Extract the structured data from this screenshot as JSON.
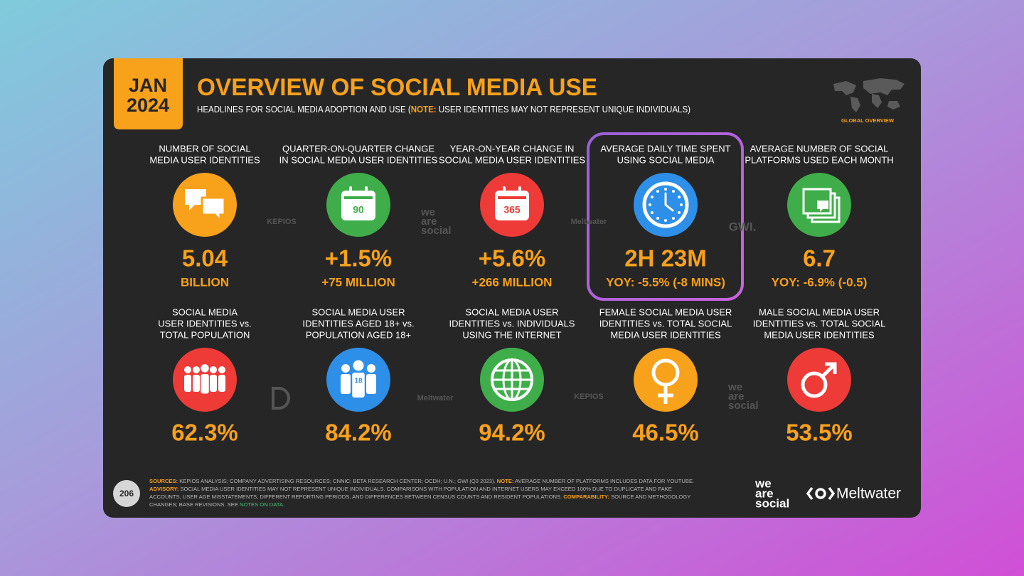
{
  "badge": {
    "month": "JAN",
    "year": "2024"
  },
  "header": {
    "title": "OVERVIEW OF SOCIAL MEDIA USE",
    "subtitle": [
      "HEADLINES FOR SOCIAL MEDIA ADOPTION AND USE (",
      "NOTE:",
      " USER IDENTITIES MAY NOT REPRESENT UNIQUE INDIVIDUALS)"
    ],
    "region": "GLOBAL OVERVIEW"
  },
  "tiles": [
    {
      "label": [
        "NUMBER OF SOCIAL",
        "MEDIA USER IDENTITIES"
      ],
      "value": "5.04",
      "sub": "BILLION"
    },
    {
      "label": [
        "QUARTER-ON-QUARTER CHANGE",
        "IN SOCIAL MEDIA USER IDENTITIES"
      ],
      "icon_text": "90",
      "value": "+1.5%",
      "sub": "+75 MILLION"
    },
    {
      "label": [
        "YEAR-ON-YEAR CHANGE IN",
        "SOCIAL MEDIA USER IDENTITIES"
      ],
      "icon_text": "365",
      "value": "+5.6%",
      "sub": "+266 MILLION"
    },
    {
      "label": [
        "AVERAGE DAILY TIME SPENT",
        "USING SOCIAL MEDIA"
      ],
      "value": "2H 23M",
      "sub": "YOY: -5.5% (-8 MINS)"
    },
    {
      "label": [
        "AVERAGE NUMBER OF SOCIAL",
        "PLATFORMS USED EACH MONTH"
      ],
      "value": "6.7",
      "sub": "YOY: -6.9% (-0.5)"
    },
    {
      "label": [
        "SOCIAL MEDIA",
        "USER IDENTITIES vs.",
        "TOTAL POPULATION"
      ],
      "value": "62.3%"
    },
    {
      "label": [
        "SOCIAL MEDIA USER",
        "IDENTITIES AGED 18+ vs.",
        "POPULATION AGED 18+"
      ],
      "icon_text": "18",
      "value": "84.2%"
    },
    {
      "label": [
        "SOCIAL MEDIA USER",
        "IDENTITIES vs. INDIVIDUALS",
        "USING THE INTERNET"
      ],
      "value": "94.2%"
    },
    {
      "label": [
        "FEMALE SOCIAL MEDIA USER",
        "IDENTITIES vs. TOTAL SOCIAL",
        "MEDIA USER IDENTITIES"
      ],
      "value": "46.5%"
    },
    {
      "label": [
        "MALE SOCIAL MEDIA USER",
        "IDENTITIES vs. TOTAL SOCIAL",
        "MEDIA USER IDENTITIES"
      ],
      "value": "53.5%"
    }
  ],
  "watermarks": [
    {
      "lines": [
        "KEPIOS"
      ]
    },
    {
      "lines": [
        "we",
        "are",
        "social"
      ]
    },
    {
      "lines": [
        "Meltwater"
      ]
    },
    {
      "lines": [
        "GWI."
      ]
    },
    {
      "lines": [
        "Meltwater"
      ]
    },
    {
      "lines": [
        "KEPIOS"
      ]
    },
    {
      "lines": [
        "we",
        "are",
        "social"
      ]
    }
  ],
  "footer": {
    "page": "206",
    "notes": [
      [
        "SOURCES:",
        " KEPIOS ANALYSIS; COMPANY ADVERTISING RESOURCES; CNNIC; BETA RESEARCH CENTER; OCDH; U.N.; GWI (Q3 2023). ",
        "NOTE:",
        " AVERAGE NUMBER OF PLATFORMS INCLUDES DATA FOR YOUTUBE."
      ],
      [
        "ADVISORY:",
        " SOCIAL MEDIA USER IDENTITIES MAY NOT REPRESENT UNIQUE INDIVIDUALS. COMPARISONS WITH POPULATION AND INTERNET USERS MAY EXCEED 100% DUE TO DUPLICATE AND FAKE"
      ],
      [
        "ACCOUNTS, USER AGE MISSTATEMENTS, DIFFERENT REPORTING PERIODS, AND DIFFERENCES BETWEEN CENSUS COUNTS AND RESIDENT POPULATIONS. ",
        "COMPARABILITY:",
        " SOURCE AND METHODOLOGY"
      ],
      [
        "CHANGES; BASE REVISIONS. SEE ",
        "NOTES ON DATA",
        "."
      ]
    ],
    "logos": {
      "we_are_social": [
        "we",
        "are",
        "social"
      ],
      "meltwater": "Meltwater"
    }
  }
}
